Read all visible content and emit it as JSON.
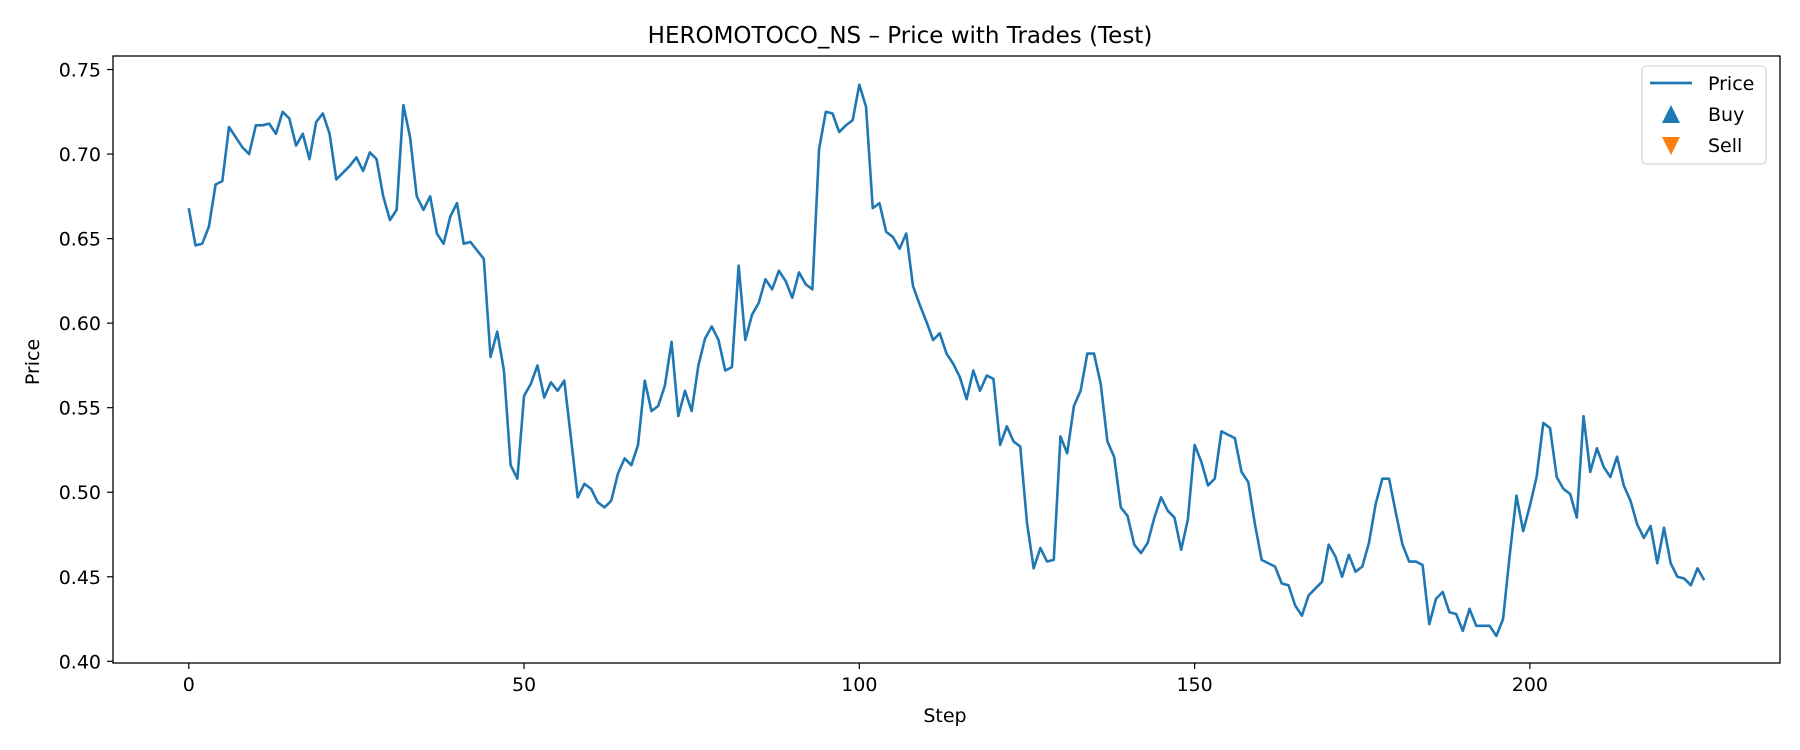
{
  "chart_data": {
    "type": "line",
    "title": "HEROMOTOCO_NS – Price with Trades (Test)",
    "xlabel": "Step",
    "ylabel": "Price",
    "xlim": [
      -11.3,
      237.3
    ],
    "ylim": [
      0.399,
      0.758
    ],
    "xticks": [
      0,
      50,
      100,
      150,
      200
    ],
    "yticks": [
      0.4,
      0.45,
      0.5,
      0.55,
      0.6,
      0.65,
      0.7,
      0.75
    ],
    "grid": false,
    "legend_position": "top-right",
    "legend": [
      {
        "label": "Price",
        "marker": "line",
        "color": "#1f77b4"
      },
      {
        "label": "Buy",
        "marker": "triangle-up",
        "color": "#1f77b4"
      },
      {
        "label": "Sell",
        "marker": "triangle-down",
        "color": "#ff7f0e"
      }
    ],
    "series": [
      {
        "name": "Price",
        "color": "#1f77b4",
        "values": [
          0.668,
          0.646,
          0.647,
          0.657,
          0.682,
          0.684,
          0.716,
          0.71,
          0.704,
          0.7,
          0.717,
          0.717,
          0.718,
          0.712,
          0.725,
          0.721,
          0.705,
          0.712,
          0.697,
          0.719,
          0.724,
          0.712,
          0.685,
          0.689,
          0.693,
          0.698,
          0.69,
          0.701,
          0.697,
          0.675,
          0.661,
          0.667,
          0.729,
          0.71,
          0.675,
          0.667,
          0.675,
          0.653,
          0.647,
          0.663,
          0.671,
          0.647,
          0.648,
          0.643,
          0.638,
          0.58,
          0.595,
          0.572,
          0.516,
          0.508,
          0.557,
          0.564,
          0.575,
          0.556,
          0.565,
          0.56,
          0.566,
          0.532,
          0.497,
          0.505,
          0.502,
          0.494,
          0.491,
          0.495,
          0.511,
          0.52,
          0.516,
          0.528,
          0.566,
          0.548,
          0.551,
          0.563,
          0.589,
          0.545,
          0.56,
          0.548,
          0.575,
          0.591,
          0.598,
          0.59,
          0.572,
          0.574,
          0.634,
          0.59,
          0.605,
          0.612,
          0.626,
          0.62,
          0.631,
          0.625,
          0.615,
          0.63,
          0.623,
          0.62,
          0.703,
          0.725,
          0.724,
          0.713,
          0.717,
          0.72,
          0.741,
          0.728,
          0.668,
          0.671,
          0.654,
          0.651,
          0.644,
          0.653,
          0.622,
          0.611,
          0.601,
          0.59,
          0.594,
          0.582,
          0.576,
          0.568,
          0.555,
          0.572,
          0.56,
          0.569,
          0.567,
          0.528,
          0.539,
          0.53,
          0.527,
          0.482,
          0.455,
          0.467,
          0.459,
          0.46,
          0.533,
          0.523,
          0.551,
          0.56,
          0.582,
          0.582,
          0.564,
          0.53,
          0.521,
          0.491,
          0.486,
          0.469,
          0.464,
          0.47,
          0.485,
          0.497,
          0.489,
          0.485,
          0.466,
          0.484,
          0.528,
          0.518,
          0.504,
          0.508,
          0.536,
          0.534,
          0.532,
          0.512,
          0.506,
          0.481,
          0.46,
          0.458,
          0.456,
          0.446,
          0.445,
          0.433,
          0.427,
          0.439,
          0.443,
          0.447,
          0.469,
          0.462,
          0.45,
          0.463,
          0.453,
          0.456,
          0.47,
          0.493,
          0.508,
          0.508,
          0.488,
          0.469,
          0.459,
          0.459,
          0.457,
          0.422,
          0.437,
          0.441,
          0.429,
          0.428,
          0.418,
          0.431,
          0.421,
          0.421,
          0.421,
          0.415,
          0.425,
          0.463,
          0.498,
          0.477,
          0.492,
          0.509,
          0.541,
          0.538,
          0.509,
          0.502,
          0.499,
          0.485,
          0.545,
          0.512,
          0.526,
          0.515,
          0.509,
          0.521,
          0.504,
          0.495,
          0.481,
          0.473,
          0.48,
          0.458,
          0.479,
          0.458,
          0.45,
          0.449,
          0.445,
          0.455,
          0.448
        ]
      }
    ],
    "buy_points": [],
    "sell_points": []
  }
}
